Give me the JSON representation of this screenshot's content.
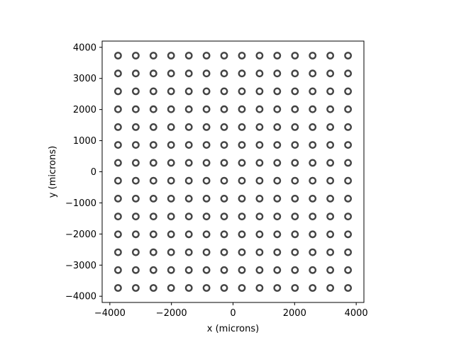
{
  "chart_data": {
    "type": "scatter",
    "title": "",
    "xlabel": "x (microns)",
    "ylabel": "y (microns)",
    "xlim": [
      -4250,
      4250
    ],
    "ylim": [
      -4200,
      4200
    ],
    "xticks": [
      -4000,
      -2000,
      0,
      2000,
      4000
    ],
    "yticks": [
      -4000,
      -3000,
      -2000,
      -1000,
      0,
      1000,
      2000,
      3000,
      4000
    ],
    "xtick_labels": [
      "−4000",
      "−2000",
      "0",
      "2000",
      "4000"
    ],
    "ytick_labels": [
      "−4000",
      "−3000",
      "−2000",
      "−1000",
      "0",
      "1000",
      "2000",
      "3000",
      "4000"
    ],
    "grid": false,
    "marker": "hollow-circle",
    "marker_color": "#444444",
    "x": [
      -3733,
      -3159,
      -2585,
      -2010,
      -1436,
      -862,
      -287,
      287,
      862,
      1436,
      2010,
      2585,
      3159,
      3733
    ],
    "y": [
      -3733,
      -3159,
      -2585,
      -2010,
      -1436,
      -862,
      -287,
      287,
      862,
      1436,
      2010,
      2585,
      3159,
      3733
    ],
    "grid_points_description": "every x paired with every y"
  }
}
